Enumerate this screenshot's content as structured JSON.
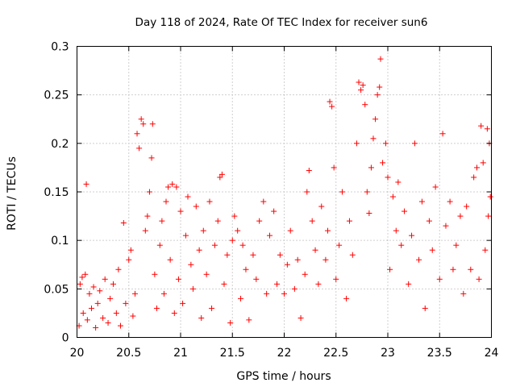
{
  "chart_data": {
    "type": "scatter",
    "title": "Day 118 of 2024, Rate Of TEC Index for receiver sun6",
    "xlabel": "GPS time / hours",
    "ylabel": "ROTI / TECUs",
    "xlim": [
      20,
      24
    ],
    "ylim": [
      0,
      0.3
    ],
    "x_ticks": [
      20,
      20.5,
      21,
      21.5,
      22,
      22.5,
      23,
      23.5,
      24
    ],
    "x_tick_labels": [
      "20",
      "20.5",
      "21",
      "21.5",
      "22",
      "22.5",
      "23",
      "23.5",
      "24"
    ],
    "y_ticks": [
      0,
      0.05,
      0.1,
      0.15,
      0.2,
      0.25,
      0.3
    ],
    "y_tick_labels": [
      "0",
      "0.05",
      "0.1",
      "0.15",
      "0.2",
      "0.25",
      "0.3"
    ],
    "grid": true,
    "marker": "+",
    "color": "#ff0000",
    "series": [
      {
        "name": "ROTI",
        "points": [
          [
            20.02,
            0.012
          ],
          [
            20.03,
            0.055
          ],
          [
            20.05,
            0.062
          ],
          [
            20.06,
            0.025
          ],
          [
            20.08,
            0.065
          ],
          [
            20.09,
            0.158
          ],
          [
            20.1,
            0.018
          ],
          [
            20.12,
            0.045
          ],
          [
            20.14,
            0.03
          ],
          [
            20.16,
            0.052
          ],
          [
            20.18,
            0.01
          ],
          [
            20.2,
            0.035
          ],
          [
            20.22,
            0.048
          ],
          [
            20.25,
            0.02
          ],
          [
            20.27,
            0.06
          ],
          [
            20.3,
            0.015
          ],
          [
            20.32,
            0.04
          ],
          [
            20.35,
            0.055
          ],
          [
            20.38,
            0.025
          ],
          [
            20.4,
            0.07
          ],
          [
            20.42,
            0.012
          ],
          [
            20.45,
            0.118
          ],
          [
            20.47,
            0.035
          ],
          [
            20.5,
            0.08
          ],
          [
            20.52,
            0.09
          ],
          [
            20.54,
            0.022
          ],
          [
            20.56,
            0.045
          ],
          [
            20.58,
            0.21
          ],
          [
            20.6,
            0.195
          ],
          [
            20.62,
            0.225
          ],
          [
            20.64,
            0.22
          ],
          [
            20.66,
            0.11
          ],
          [
            20.68,
            0.125
          ],
          [
            20.7,
            0.15
          ],
          [
            20.72,
            0.185
          ],
          [
            20.73,
            0.22
          ],
          [
            20.75,
            0.065
          ],
          [
            20.77,
            0.03
          ],
          [
            20.8,
            0.095
          ],
          [
            20.82,
            0.12
          ],
          [
            20.84,
            0.045
          ],
          [
            20.86,
            0.14
          ],
          [
            20.88,
            0.155
          ],
          [
            20.9,
            0.08
          ],
          [
            20.92,
            0.158
          ],
          [
            20.94,
            0.025
          ],
          [
            20.96,
            0.155
          ],
          [
            20.98,
            0.06
          ],
          [
            21.0,
            0.13
          ],
          [
            21.02,
            0.035
          ],
          [
            21.05,
            0.105
          ],
          [
            21.07,
            0.145
          ],
          [
            21.1,
            0.075
          ],
          [
            21.12,
            0.05
          ],
          [
            21.15,
            0.135
          ],
          [
            21.18,
            0.09
          ],
          [
            21.2,
            0.02
          ],
          [
            21.22,
            0.11
          ],
          [
            21.25,
            0.065
          ],
          [
            21.28,
            0.14
          ],
          [
            21.3,
            0.03
          ],
          [
            21.33,
            0.095
          ],
          [
            21.36,
            0.12
          ],
          [
            21.38,
            0.165
          ],
          [
            21.4,
            0.168
          ],
          [
            21.42,
            0.055
          ],
          [
            21.45,
            0.085
          ],
          [
            21.48,
            0.015
          ],
          [
            21.5,
            0.1
          ],
          [
            21.52,
            0.125
          ],
          [
            21.55,
            0.11
          ],
          [
            21.58,
            0.04
          ],
          [
            21.6,
            0.095
          ],
          [
            21.63,
            0.07
          ],
          [
            21.66,
            0.018
          ],
          [
            21.7,
            0.085
          ],
          [
            21.73,
            0.06
          ],
          [
            21.76,
            0.12
          ],
          [
            21.8,
            0.14
          ],
          [
            21.83,
            0.045
          ],
          [
            21.86,
            0.105
          ],
          [
            21.9,
            0.13
          ],
          [
            21.93,
            0.055
          ],
          [
            21.96,
            0.085
          ],
          [
            22.0,
            0.045
          ],
          [
            22.03,
            0.075
          ],
          [
            22.06,
            0.11
          ],
          [
            22.1,
            0.05
          ],
          [
            22.13,
            0.08
          ],
          [
            22.16,
            0.02
          ],
          [
            22.2,
            0.065
          ],
          [
            22.22,
            0.15
          ],
          [
            22.24,
            0.172
          ],
          [
            22.27,
            0.12
          ],
          [
            22.3,
            0.09
          ],
          [
            22.33,
            0.055
          ],
          [
            22.36,
            0.135
          ],
          [
            22.4,
            0.08
          ],
          [
            22.42,
            0.11
          ],
          [
            22.44,
            0.243
          ],
          [
            22.46,
            0.238
          ],
          [
            22.48,
            0.175
          ],
          [
            22.5,
            0.06
          ],
          [
            22.53,
            0.095
          ],
          [
            22.56,
            0.15
          ],
          [
            22.6,
            0.04
          ],
          [
            22.63,
            0.12
          ],
          [
            22.66,
            0.085
          ],
          [
            22.7,
            0.2
          ],
          [
            22.72,
            0.263
          ],
          [
            22.74,
            0.255
          ],
          [
            22.76,
            0.26
          ],
          [
            22.78,
            0.24
          ],
          [
            22.8,
            0.15
          ],
          [
            22.82,
            0.128
          ],
          [
            22.84,
            0.175
          ],
          [
            22.86,
            0.205
          ],
          [
            22.88,
            0.225
          ],
          [
            22.9,
            0.25
          ],
          [
            22.92,
            0.258
          ],
          [
            22.93,
            0.287
          ],
          [
            22.95,
            0.18
          ],
          [
            22.98,
            0.2
          ],
          [
            23.0,
            0.165
          ],
          [
            23.02,
            0.07
          ],
          [
            23.05,
            0.145
          ],
          [
            23.08,
            0.11
          ],
          [
            23.1,
            0.16
          ],
          [
            23.13,
            0.095
          ],
          [
            23.16,
            0.13
          ],
          [
            23.2,
            0.055
          ],
          [
            23.23,
            0.105
          ],
          [
            23.26,
            0.2
          ],
          [
            23.3,
            0.08
          ],
          [
            23.33,
            0.14
          ],
          [
            23.36,
            0.03
          ],
          [
            23.4,
            0.12
          ],
          [
            23.43,
            0.09
          ],
          [
            23.46,
            0.155
          ],
          [
            23.5,
            0.06
          ],
          [
            23.53,
            0.21
          ],
          [
            23.56,
            0.115
          ],
          [
            23.6,
            0.14
          ],
          [
            23.63,
            0.07
          ],
          [
            23.66,
            0.095
          ],
          [
            23.7,
            0.125
          ],
          [
            23.73,
            0.045
          ],
          [
            23.76,
            0.135
          ],
          [
            23.8,
            0.07
          ],
          [
            23.83,
            0.165
          ],
          [
            23.86,
            0.175
          ],
          [
            23.88,
            0.06
          ],
          [
            23.9,
            0.218
          ],
          [
            23.92,
            0.18
          ],
          [
            23.94,
            0.09
          ],
          [
            23.96,
            0.215
          ],
          [
            23.97,
            0.125
          ],
          [
            23.98,
            0.2
          ],
          [
            23.99,
            0.145
          ]
        ]
      }
    ]
  }
}
